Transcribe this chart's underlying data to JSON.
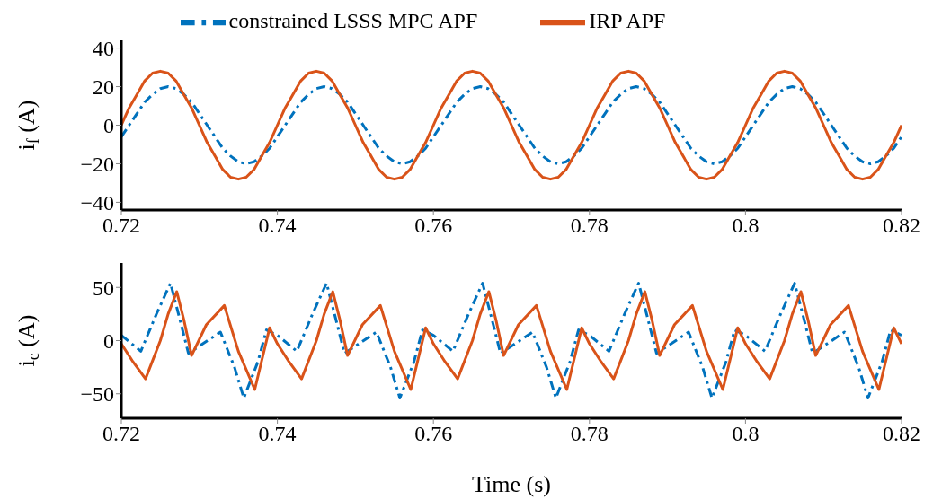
{
  "chart_data": [
    {
      "type": "line",
      "ylabel": "i$_{f}$ (A)",
      "xlim": [
        0.72,
        0.82
      ],
      "xticks": [
        0.72,
        0.74,
        0.76,
        0.78,
        0.8,
        0.82
      ],
      "ylim": [
        -44,
        44
      ],
      "yticks": [
        -40,
        -20,
        0,
        20,
        40
      ],
      "legend": "top",
      "x": [
        0.72,
        0.721,
        0.722,
        0.723,
        0.724,
        0.725,
        0.726,
        0.727,
        0.728,
        0.729,
        0.73,
        0.731,
        0.732,
        0.733,
        0.734,
        0.735,
        0.736,
        0.737,
        0.738,
        0.739,
        0.74,
        0.741,
        0.742,
        0.743,
        0.744,
        0.745,
        0.746,
        0.747,
        0.748,
        0.749,
        0.75,
        0.751,
        0.752,
        0.753,
        0.754,
        0.755,
        0.756,
        0.757,
        0.758,
        0.759,
        0.76,
        0.761,
        0.762,
        0.763,
        0.764,
        0.765,
        0.766,
        0.767,
        0.768,
        0.769,
        0.77,
        0.771,
        0.772,
        0.773,
        0.774,
        0.775,
        0.776,
        0.777,
        0.778,
        0.779,
        0.78,
        0.781,
        0.782,
        0.783,
        0.784,
        0.785,
        0.786,
        0.787,
        0.788,
        0.789,
        0.79,
        0.791,
        0.792,
        0.793,
        0.794,
        0.795,
        0.796,
        0.797,
        0.798,
        0.799,
        0.8,
        0.801,
        0.802,
        0.803,
        0.804,
        0.805,
        0.806,
        0.807,
        0.808,
        0.809,
        0.81,
        0.811,
        0.812,
        0.813,
        0.814,
        0.815,
        0.816,
        0.817,
        0.818,
        0.819,
        0.82
      ],
      "series": [
        {
          "name": "constrained LSSS MPC APF",
          "color": "#0072bd",
          "line_style": "dashed",
          "values": [
            -6,
            0,
            6,
            12,
            16,
            19,
            20,
            19,
            16,
            12,
            6,
            0,
            -6,
            -12,
            -16,
            -19,
            -20,
            -19,
            -16,
            -12,
            -6,
            0,
            6,
            12,
            16,
            19,
            20,
            19,
            16,
            12,
            6,
            0,
            -6,
            -12,
            -16,
            -19,
            -20,
            -19,
            -16,
            -12,
            -6,
            0,
            6,
            12,
            16,
            19,
            20,
            19,
            16,
            12,
            6,
            0,
            -6,
            -12,
            -16,
            -19,
            -20,
            -19,
            -16,
            -12,
            -6,
            0,
            6,
            12,
            16,
            19,
            20,
            19,
            16,
            12,
            6,
            0,
            -6,
            -12,
            -16,
            -19,
            -20,
            -19,
            -16,
            -12,
            -6,
            0,
            6,
            12,
            16,
            19,
            20,
            19,
            16,
            12,
            6,
            0,
            -6,
            -12,
            -16,
            -19,
            -20,
            -19,
            -16,
            -12,
            -6
          ]
        },
        {
          "name": "IRP APF",
          "color": "#d95319",
          "line_style": "solid",
          "values": [
            0,
            9,
            16,
            23,
            27,
            28,
            27,
            23,
            16,
            9,
            0,
            -9,
            -16,
            -23,
            -27,
            -28,
            -27,
            -23,
            -16,
            -9,
            0,
            9,
            16,
            23,
            27,
            28,
            27,
            23,
            16,
            9,
            0,
            -9,
            -16,
            -23,
            -27,
            -28,
            -27,
            -23,
            -16,
            -9,
            0,
            9,
            16,
            23,
            27,
            28,
            27,
            23,
            16,
            9,
            0,
            -9,
            -16,
            -23,
            -27,
            -28,
            -27,
            -23,
            -16,
            -9,
            0,
            9,
            16,
            23,
            27,
            28,
            27,
            23,
            16,
            9,
            0,
            -9,
            -16,
            -23,
            -27,
            -28,
            -27,
            -23,
            -16,
            -9,
            0,
            9,
            16,
            23,
            27,
            28,
            27,
            23,
            16,
            9,
            0,
            -9,
            -16,
            -23,
            -27,
            -28,
            -27,
            -23,
            -16,
            -9,
            0
          ]
        }
      ]
    },
    {
      "type": "line",
      "xlabel": "Time (s)",
      "ylabel": "i$_{c}$ (A)",
      "xlim": [
        0.72,
        0.82
      ],
      "xticks": [
        0.72,
        0.74,
        0.76,
        0.78,
        0.8,
        0.82
      ],
      "ylim": [
        -73,
        73
      ],
      "yticks": [
        -50,
        0,
        50
      ],
      "series": [
        {
          "color": "#0072bd",
          "line_style": "dashed",
          "x": [
            0.72,
            0.7225,
            0.7245,
            0.7263,
            0.7275,
            0.7286,
            0.7327,
            0.7345,
            0.7357,
            0.7375,
            0.7386,
            0.74,
            0.7425,
            0.7445,
            0.7463,
            0.7475,
            0.7486,
            0.7527,
            0.7545,
            0.7557,
            0.7575,
            0.7586,
            0.76,
            0.7625,
            0.7645,
            0.7663,
            0.7675,
            0.7686,
            0.7727,
            0.7745,
            0.7757,
            0.7775,
            0.7786,
            0.78,
            0.7825,
            0.7845,
            0.7863,
            0.7875,
            0.7886,
            0.7927,
            0.7945,
            0.7957,
            0.7975,
            0.7986,
            0.8,
            0.8025,
            0.8045,
            0.8063,
            0.8075,
            0.8086,
            0.8127,
            0.8145,
            0.8157,
            0.8175,
            0.8186,
            0.82
          ],
          "values": [
            5,
            -10,
            25,
            54,
            20,
            -12,
            8,
            -25,
            -54,
            -20,
            10,
            5,
            -10,
            25,
            54,
            20,
            -12,
            8,
            -25,
            -54,
            -20,
            10,
            5,
            -10,
            25,
            54,
            20,
            -12,
            8,
            -25,
            -54,
            -20,
            10,
            5,
            -10,
            25,
            54,
            20,
            -12,
            8,
            -25,
            -54,
            -20,
            10,
            5,
            -10,
            25,
            54,
            20,
            -12,
            8,
            -25,
            -54,
            -20,
            10,
            5
          ]
        },
        {
          "color": "#d95319",
          "line_style": "solid",
          "x": [
            0.72,
            0.7215,
            0.7231,
            0.725,
            0.726,
            0.7271,
            0.728,
            0.729,
            0.7309,
            0.7332,
            0.735,
            0.7371,
            0.739,
            0.74,
            0.7415,
            0.7431,
            0.745,
            0.746,
            0.7471,
            0.748,
            0.749,
            0.7509,
            0.7532,
            0.755,
            0.7571,
            0.759,
            0.76,
            0.7615,
            0.7631,
            0.765,
            0.766,
            0.7671,
            0.768,
            0.769,
            0.7709,
            0.7732,
            0.775,
            0.7771,
            0.779,
            0.78,
            0.7815,
            0.7831,
            0.785,
            0.786,
            0.7871,
            0.788,
            0.789,
            0.7909,
            0.7932,
            0.795,
            0.7971,
            0.799,
            0.8,
            0.8015,
            0.8031,
            0.805,
            0.806,
            0.8071,
            0.808,
            0.809,
            0.8109,
            0.8132,
            0.815,
            0.8171,
            0.819,
            0.82
          ],
          "values": [
            -3,
            -20,
            -36,
            0,
            25,
            46,
            20,
            -14,
            15,
            33,
            -10,
            -46,
            12,
            -3,
            -20,
            -36,
            0,
            25,
            46,
            20,
            -14,
            15,
            33,
            -10,
            -46,
            12,
            -3,
            -20,
            -36,
            0,
            25,
            46,
            20,
            -14,
            15,
            33,
            -10,
            -46,
            12,
            -3,
            -20,
            -36,
            0,
            25,
            46,
            20,
            -14,
            15,
            33,
            -10,
            -46,
            12,
            -3,
            -20,
            -36,
            0,
            25,
            46,
            20,
            -14,
            15,
            33,
            -10,
            -46,
            12,
            -3
          ]
        }
      ]
    }
  ]
}
